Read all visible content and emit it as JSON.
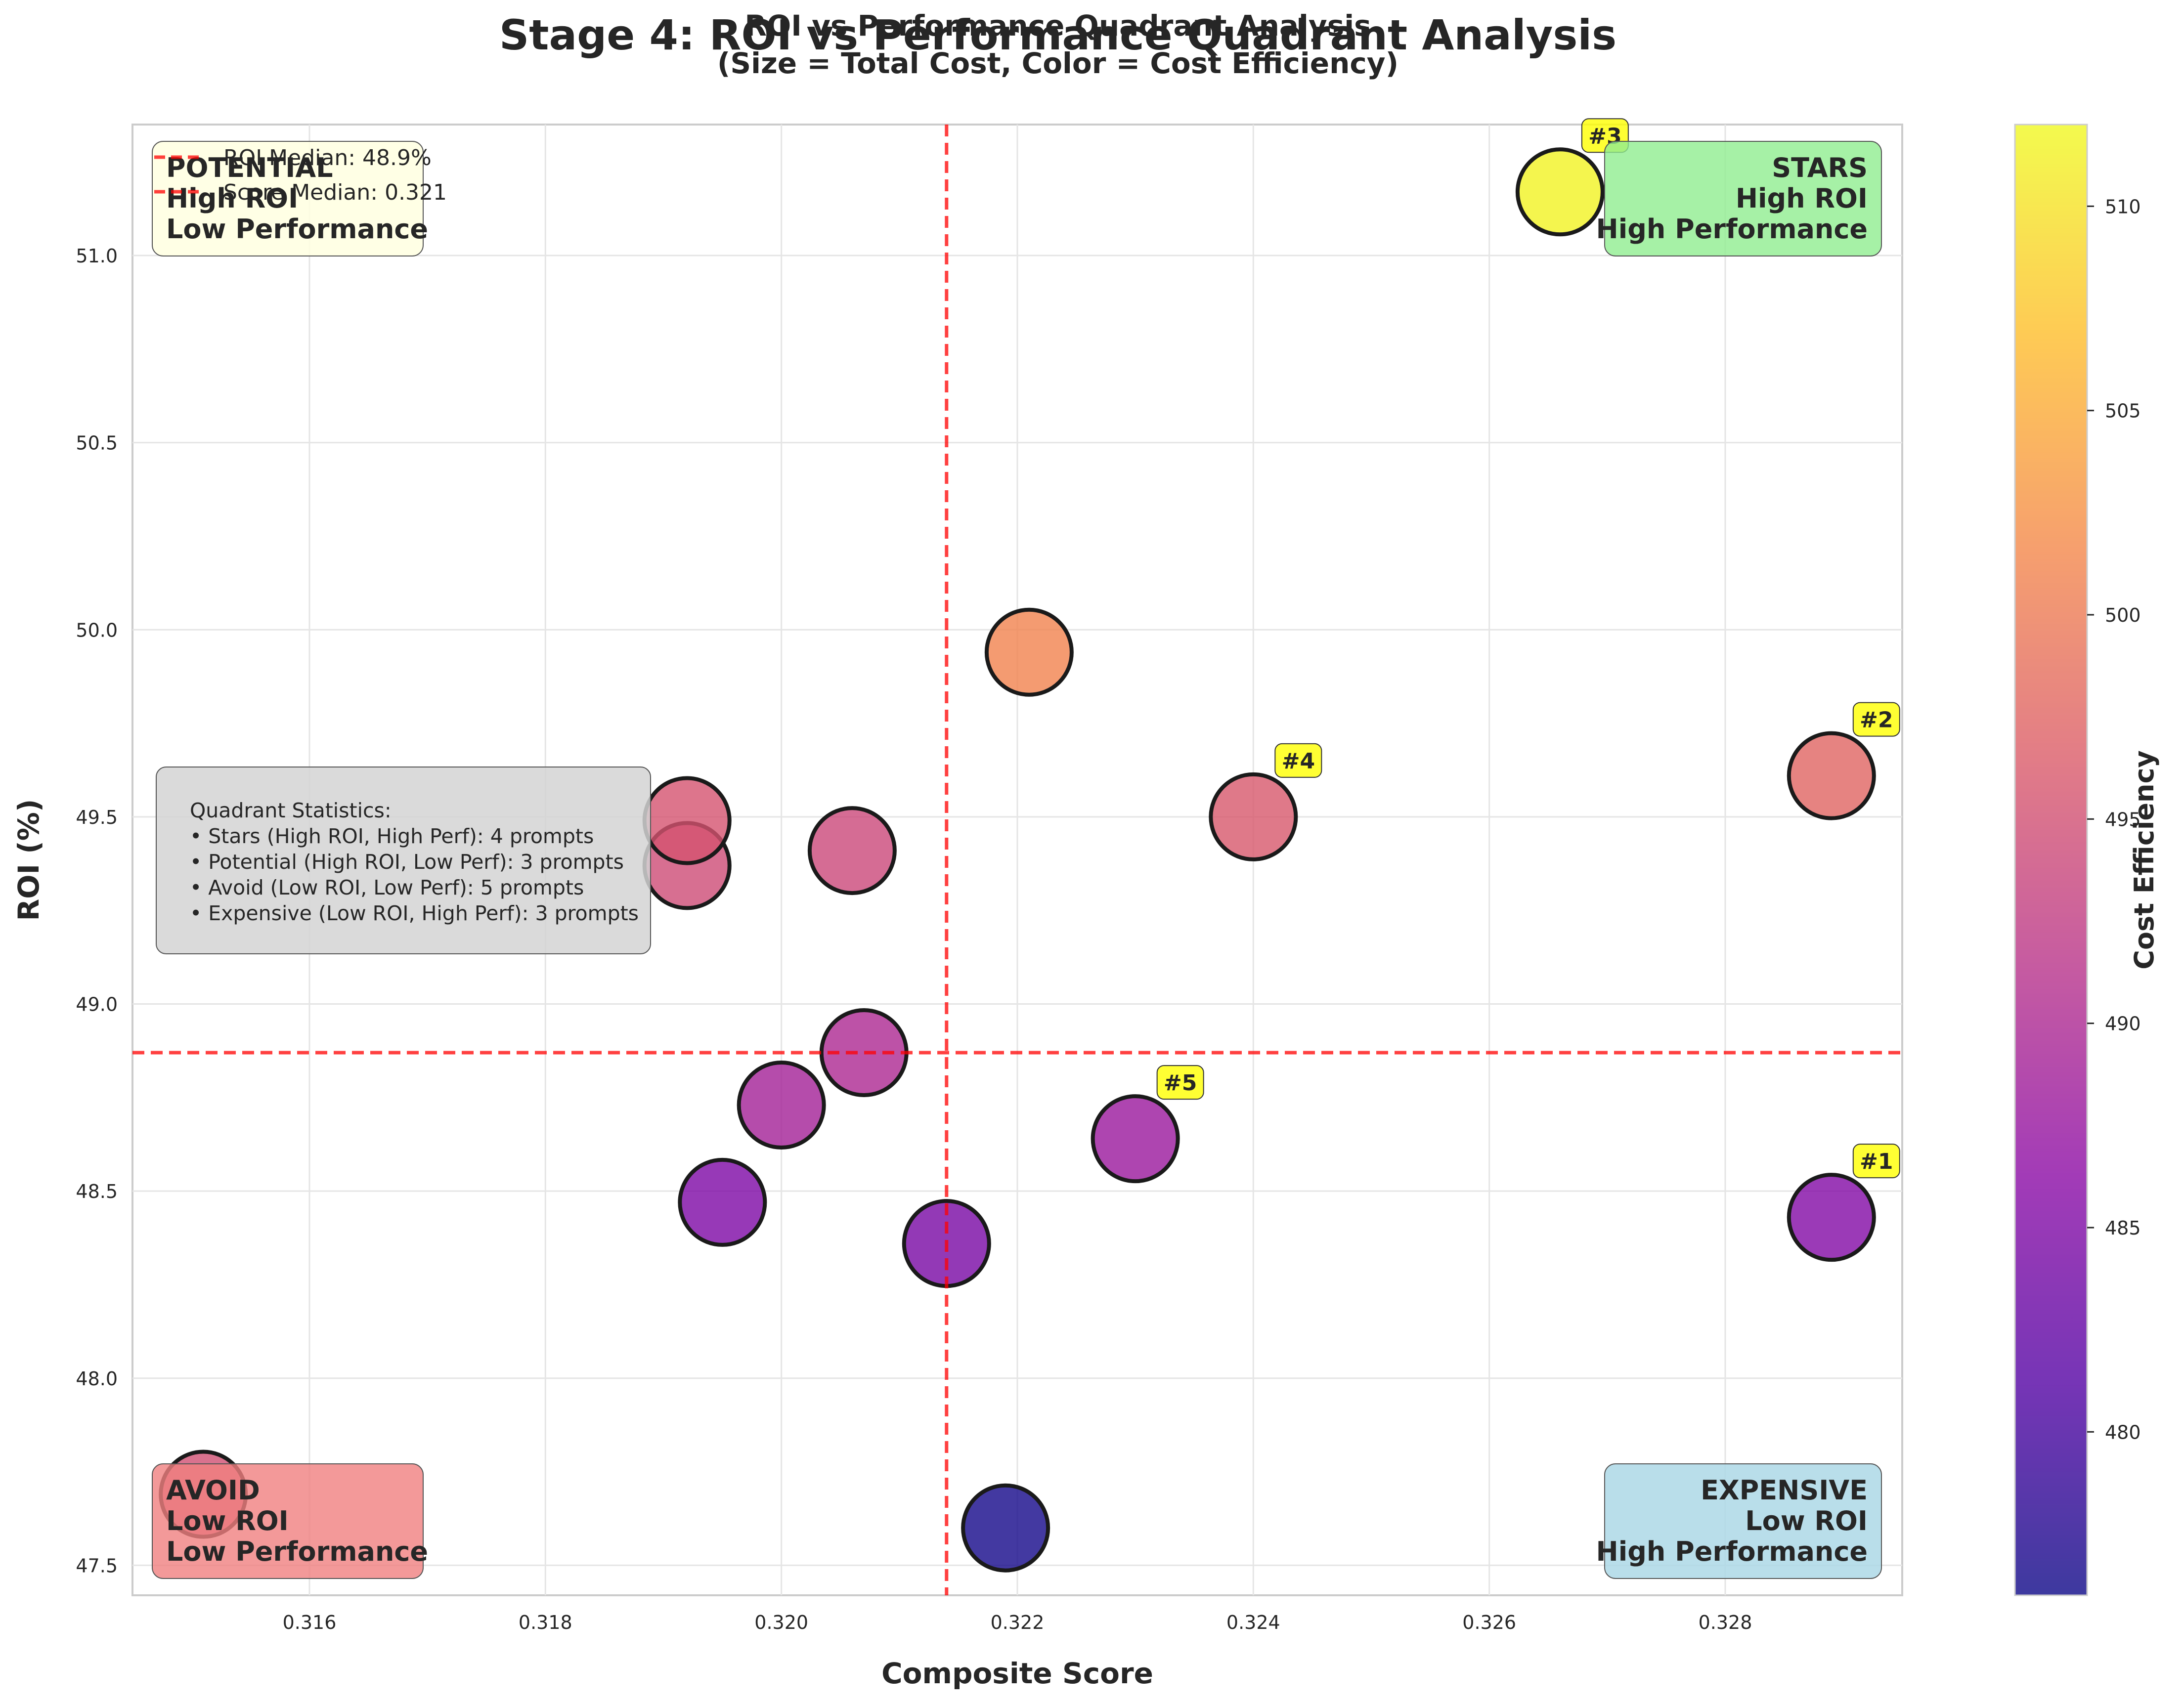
{
  "header": {
    "suptitle": "Stage 4: ROI vs Performance Quadrant Analysis",
    "title_line1": "ROI vs Performance Quadrant Analysis",
    "title_line2": "(Size = Total Cost, Color = Cost Efficiency)"
  },
  "chart_data": {
    "type": "scatter",
    "title": "ROI vs Performance Quadrant Analysis",
    "subtitle": "(Size = Total Cost, Color = Cost Efficiency)",
    "xlabel": "Composite Score",
    "ylabel": "ROI (%)",
    "xlim": [
      0.3145,
      0.3295
    ],
    "ylim": [
      47.42,
      51.35
    ],
    "xticks": [
      0.316,
      0.318,
      0.32,
      0.322,
      0.324,
      0.326,
      0.328
    ],
    "xtick_labels": [
      "0.316",
      "0.318",
      "0.320",
      "0.322",
      "0.324",
      "0.326",
      "0.328"
    ],
    "yticks": [
      47.5,
      48.0,
      48.5,
      49.0,
      49.5,
      50.0,
      50.5,
      51.0
    ],
    "ytick_labels": [
      "47.5",
      "48.0",
      "48.5",
      "49.0",
      "49.5",
      "50.0",
      "50.5",
      "51.0"
    ],
    "grid": true,
    "roi_median": 48.87,
    "score_median": 0.3214,
    "colorbar": {
      "label": "Cost Efficiency",
      "min": 476.0,
      "max": 512.0,
      "ticks": [
        480,
        485,
        490,
        495,
        500,
        505,
        510
      ],
      "tick_labels": [
        "480",
        "485",
        "490",
        "495",
        "500",
        "505",
        "510"
      ],
      "colormap": [
        "#0d0887",
        "#5302a3",
        "#8b0aa5",
        "#b83289",
        "#db5c68",
        "#f48849",
        "#febd2a",
        "#f0f921"
      ]
    },
    "points": [
      {
        "x": 0.3289,
        "y": 48.43,
        "c": 485.5,
        "rank": "#1"
      },
      {
        "x": 0.3289,
        "y": 49.61,
        "c": 497.5,
        "rank": "#2"
      },
      {
        "x": 0.3266,
        "y": 51.17,
        "c": 511.5,
        "rank": "#3"
      },
      {
        "x": 0.324,
        "y": 49.5,
        "c": 496.0,
        "rank": "#4"
      },
      {
        "x": 0.323,
        "y": 48.64,
        "c": 488.0,
        "rank": "#5"
      },
      {
        "x": 0.3221,
        "y": 49.94,
        "c": 501.0,
        "rank": ""
      },
      {
        "x": 0.3219,
        "y": 47.6,
        "c": 476.5,
        "rank": ""
      },
      {
        "x": 0.3214,
        "y": 48.36,
        "c": 484.5,
        "rank": ""
      },
      {
        "x": 0.3207,
        "y": 48.87,
        "c": 490.0,
        "rank": ""
      },
      {
        "x": 0.3206,
        "y": 49.41,
        "c": 494.0,
        "rank": ""
      },
      {
        "x": 0.32,
        "y": 48.73,
        "c": 489.0,
        "rank": ""
      },
      {
        "x": 0.3195,
        "y": 48.47,
        "c": 485.0,
        "rank": ""
      },
      {
        "x": 0.3192,
        "y": 49.37,
        "c": 494.5,
        "rank": ""
      },
      {
        "x": 0.3192,
        "y": 49.49,
        "c": 495.5,
        "rank": ""
      },
      {
        "x": 0.3151,
        "y": 47.69,
        "c": 495.0,
        "rank": ""
      }
    ],
    "legend": {
      "placement": "top-left",
      "entries": [
        "ROI Median: 48.9%",
        "Score Median: 0.321"
      ]
    },
    "quadrants": {
      "potential": {
        "lines": [
          "POTENTIAL",
          "High ROI",
          "Low Performance"
        ],
        "color": "#ffffe0"
      },
      "stars": {
        "lines": [
          "STARS",
          "High ROI",
          "High Performance"
        ],
        "color": "#90ee90"
      },
      "avoid": {
        "lines": [
          "AVOID",
          "Low ROI",
          "Low Performance"
        ],
        "color": "#f08080"
      },
      "expensive": {
        "lines": [
          "EXPENSIVE",
          "Low ROI",
          "High Performance"
        ],
        "color": "#add8e6"
      }
    },
    "stats_box": {
      "lines": [
        "Quadrant Statistics:",
        "• Stars (High ROI, High Perf): 4 prompts",
        "• Potential (High ROI, Low Perf): 3 prompts",
        "• Avoid (Low ROI, Low Perf): 5 prompts",
        "• Expensive (Low ROI, High Perf): 3 prompts"
      ]
    },
    "median_line_color": "#ff0000",
    "rank_badge_color": "#ffff00"
  }
}
